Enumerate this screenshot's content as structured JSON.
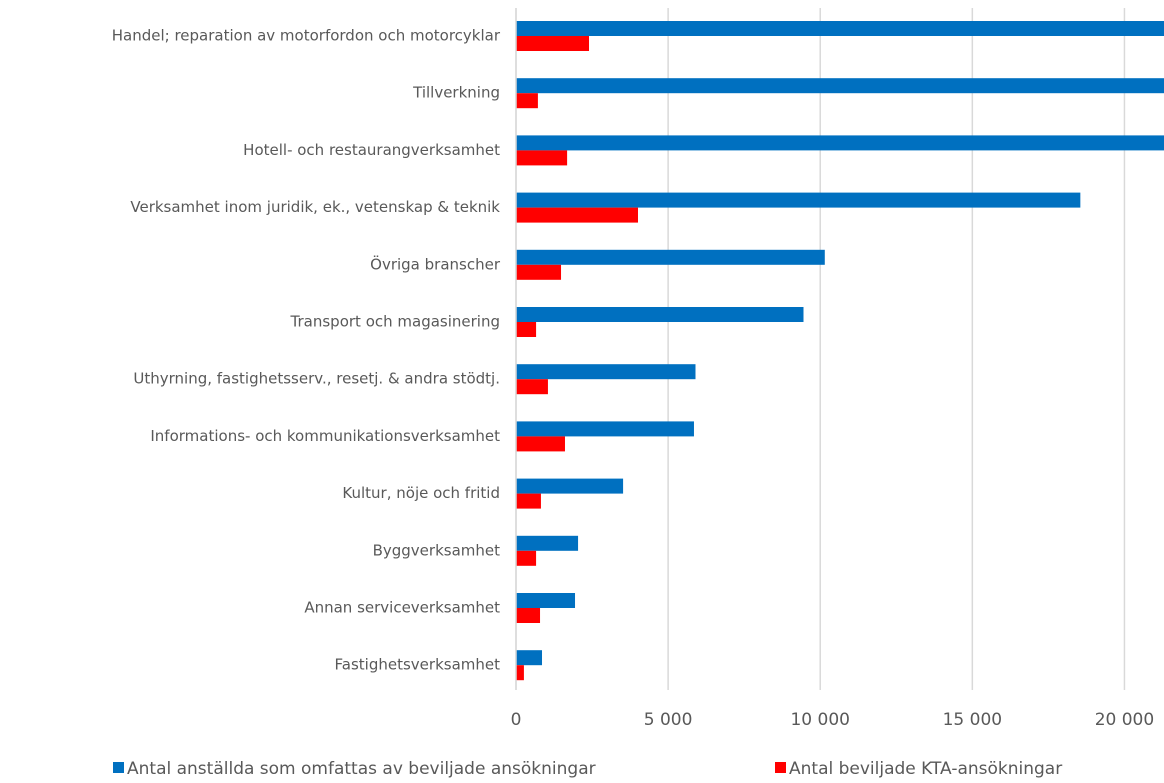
{
  "chart_data": {
    "type": "hbar",
    "categories": [
      "Handel; reparation av motorfordon och motorcyklar",
      "Tillverkning",
      "Hotell- och restaurangverksamhet",
      "Verksamhet inom juridik, ek., vetenskap & teknik",
      "Övriga branscher",
      "Transport och magasinering",
      "Uthyrning, fastighetsserv., resetj. & andra stödtj.",
      "Informations- och kommunikationsverksamhet",
      "Kultur, nöje och fritid",
      "Byggverksamhet",
      "Annan serviceverksamhet",
      "Fastighetsverksamhet"
    ],
    "series": [
      {
        "name": "Antal anställda som omfattas av beviljade ansökningar",
        "color": "#0070c0",
        "values": [
          21300,
          21300,
          21300,
          18550,
          10150,
          9450,
          5900,
          5850,
          3520,
          2040,
          1940,
          855
        ]
      },
      {
        "name": "Antal beviljade KTA-ansökningar",
        "color": "#ff0000",
        "values": [
          2400,
          720,
          1680,
          4010,
          1480,
          660,
          1050,
          1610,
          820,
          660,
          790,
          260
        ]
      }
    ],
    "xlim": [
      0,
      21300
    ],
    "xticks": [
      0,
      {
        "value": 5000,
        "label": "5 000"
      },
      {
        "value": 10000,
        "label": "10 000"
      },
      {
        "value": 15000,
        "label": "15 000"
      },
      {
        "value": 20000,
        "label": "20 000"
      }
    ],
    "grid": true,
    "legend": "bottom"
  }
}
